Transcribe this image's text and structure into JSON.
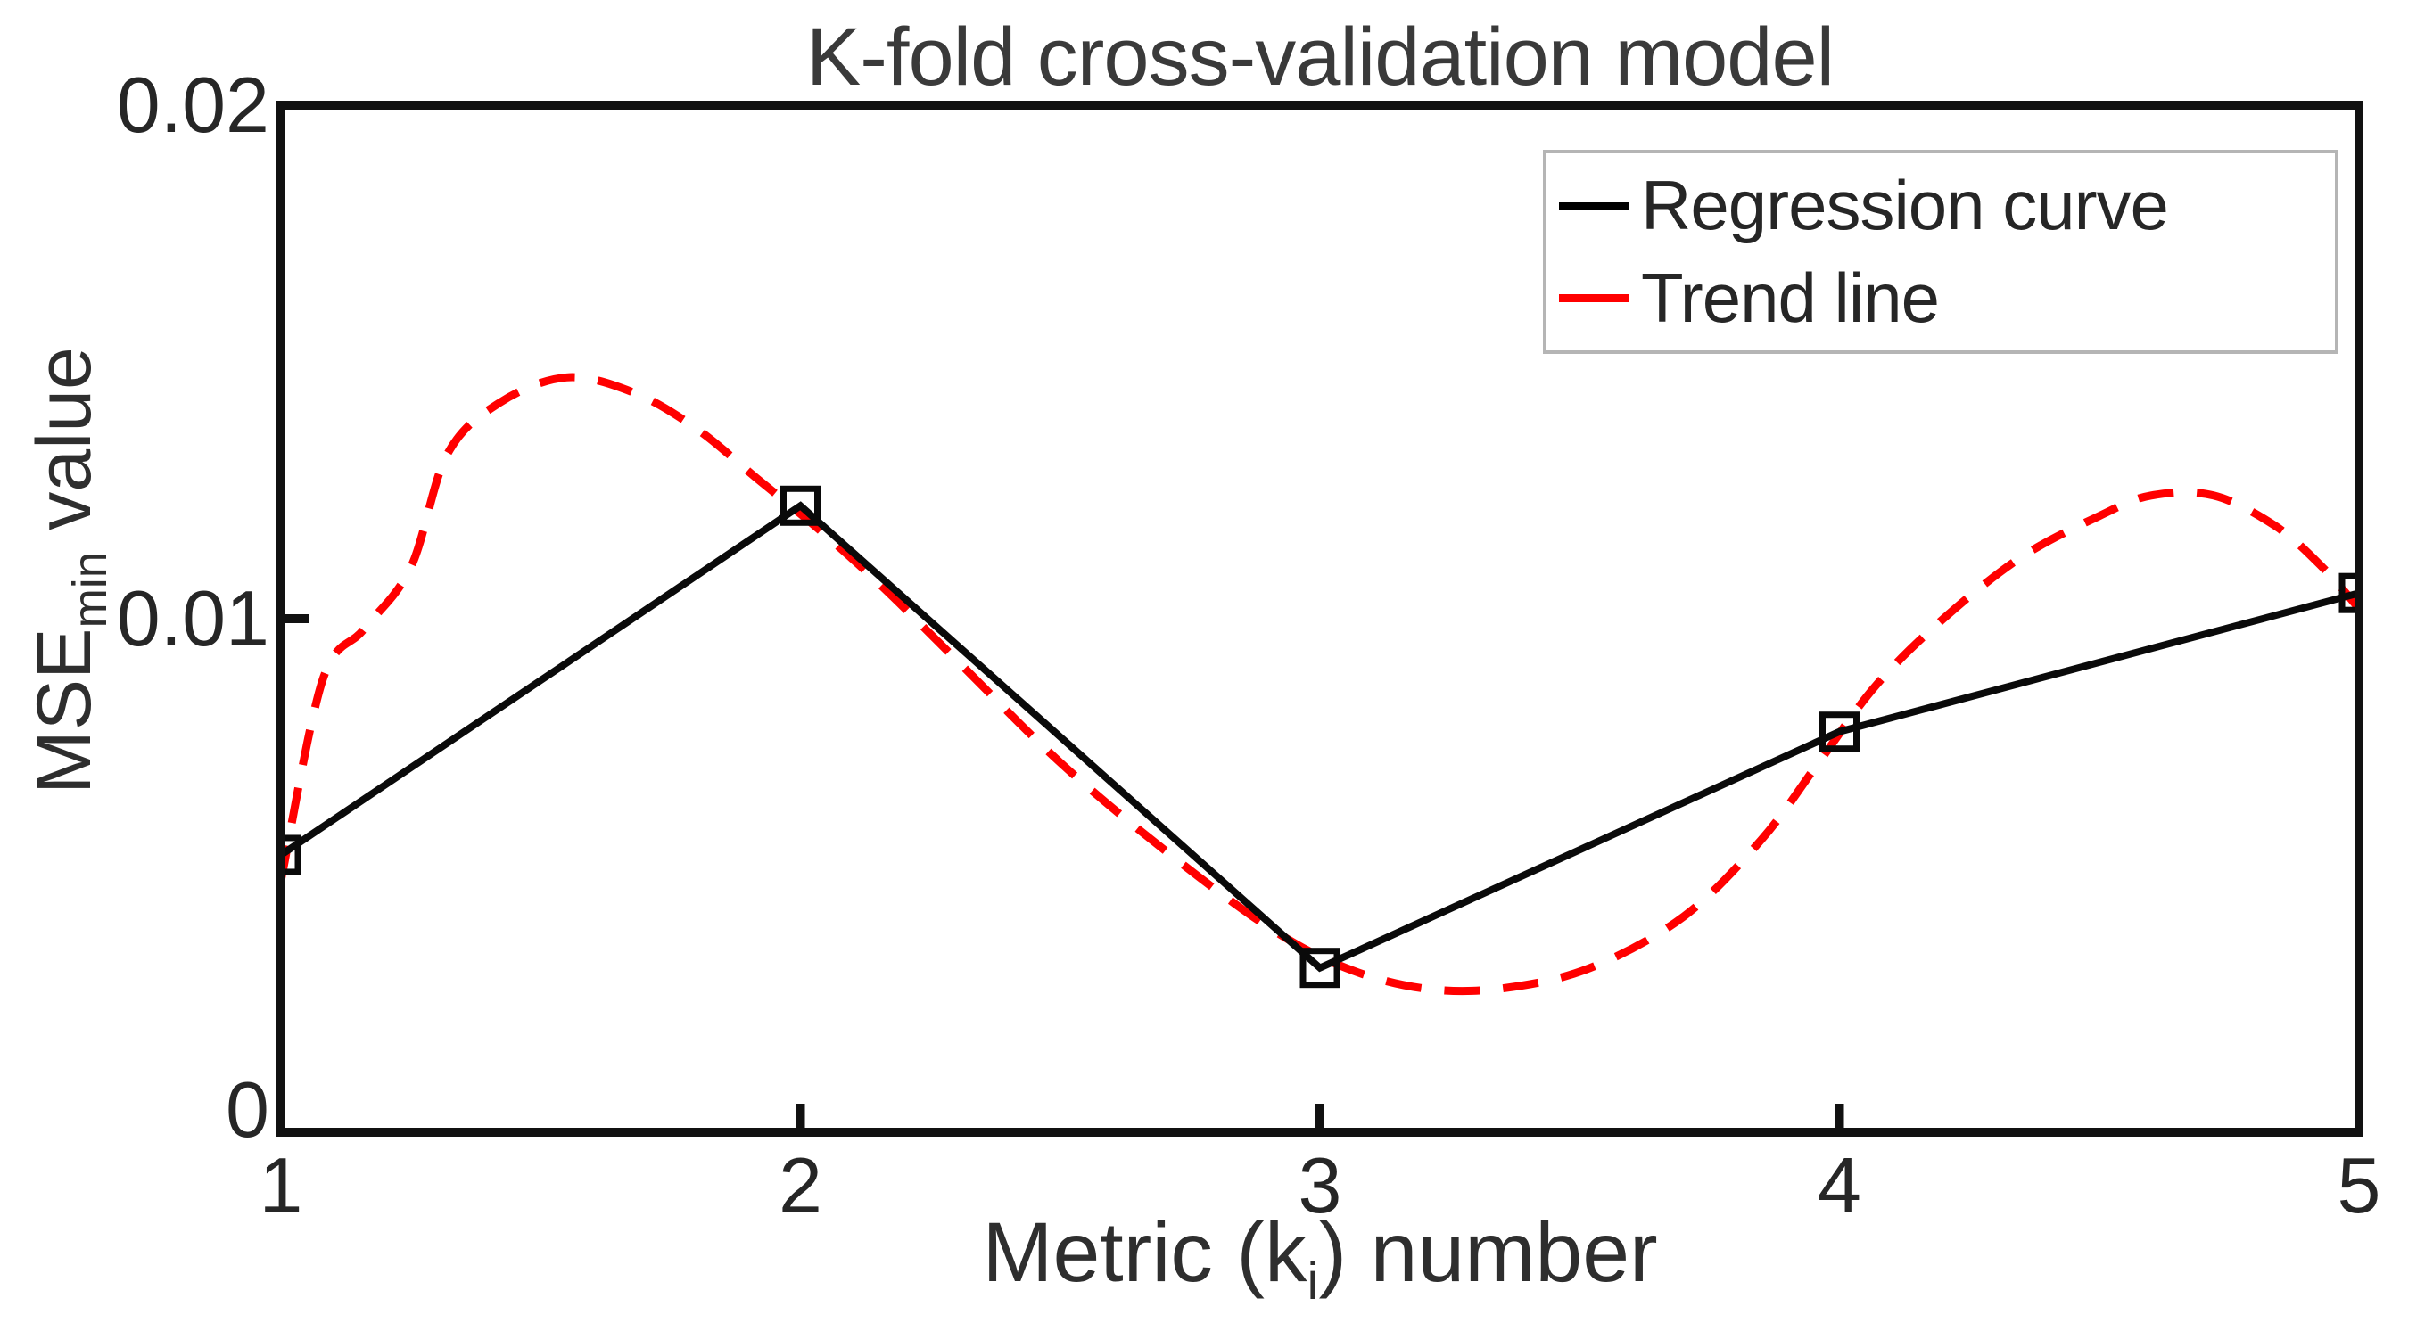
{
  "title": "K-fold cross-validation model",
  "x_axis": {
    "label_prefix": "Metric (k",
    "label_sub": "i",
    "label_suffix": ") number",
    "tick_labels": [
      "1",
      "2",
      "3",
      "4",
      "5"
    ]
  },
  "y_axis": {
    "label_prefix": "MSE",
    "label_sub": "min",
    "label_suffix": " value",
    "tick_labels": [
      "0",
      "0.01",
      "0.02"
    ]
  },
  "legend": [
    {
      "label": "Regression curve",
      "color": "#000000"
    },
    {
      "label": "Trend line",
      "color": "#ff0000"
    }
  ],
  "colors": {
    "axis": "#111111",
    "regression_line": "#0a0a0a",
    "trend_line": "#ff0000",
    "text": "#262626",
    "legend_border": "#b5b5b5",
    "background": "#ffffff"
  },
  "chart_data": {
    "type": "line",
    "title": "K-fold cross-validation model",
    "xlabel": "Metric (ki) number",
    "ylabel": "MSEmin value",
    "xlim": [
      1,
      5
    ],
    "ylim": [
      0,
      0.02
    ],
    "x_ticks": [
      1,
      2,
      3,
      4,
      5
    ],
    "y_ticks": [
      0,
      0.01,
      0.02
    ],
    "grid": false,
    "legend_position": "top-right",
    "series": [
      {
        "name": "Regression curve",
        "style": "solid",
        "color": "#0a0a0a",
        "marker": "square",
        "x": [
          1,
          2,
          3,
          4,
          5
        ],
        "y": [
          0.0054,
          0.0122,
          0.0032,
          0.0078,
          0.0105
        ]
      },
      {
        "name": "Trend line",
        "style": "dashed",
        "color": "#ff0000",
        "marker": "none",
        "x": [
          1.0,
          1.08,
          1.16,
          1.25,
          1.32,
          1.42,
          1.55,
          1.68,
          1.8,
          1.92,
          2.04,
          2.16,
          2.3,
          2.5,
          2.7,
          2.9,
          3.05,
          3.2,
          3.35,
          3.52,
          3.7,
          3.85,
          3.96,
          4.07,
          4.2,
          4.35,
          4.5,
          4.6,
          4.72,
          4.84,
          4.93,
          5.0
        ],
        "y": [
          0.0049,
          0.0088,
          0.0098,
          0.011,
          0.0132,
          0.0142,
          0.0147,
          0.0144,
          0.0137,
          0.0127,
          0.0117,
          0.0106,
          0.0092,
          0.0072,
          0.0055,
          0.004,
          0.0032,
          0.0028,
          0.0028,
          0.0032,
          0.0042,
          0.0057,
          0.0072,
          0.0087,
          0.01,
          0.0112,
          0.012,
          0.0124,
          0.0124,
          0.0118,
          0.011,
          0.0102
        ]
      }
    ]
  }
}
